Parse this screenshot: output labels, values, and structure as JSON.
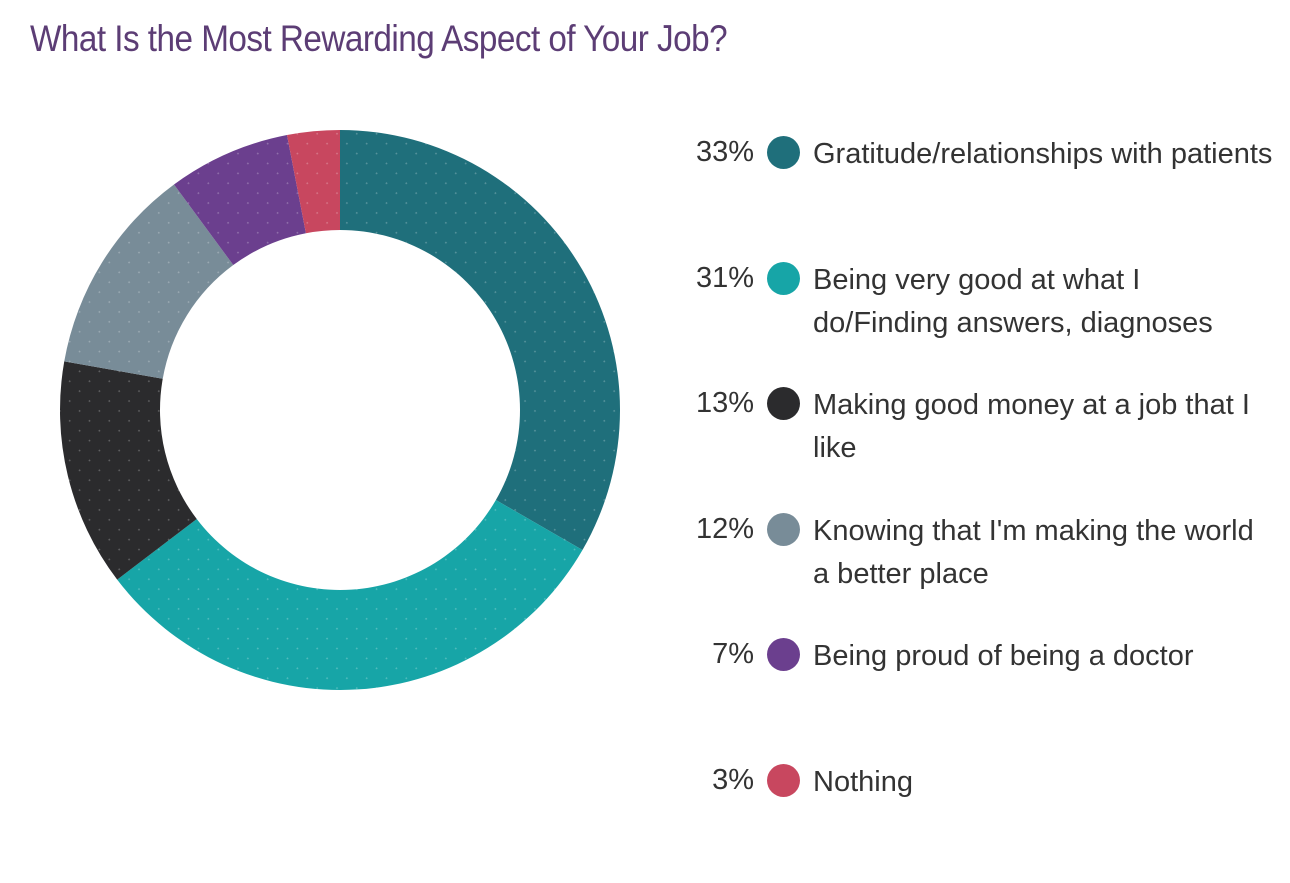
{
  "chart_data": {
    "type": "pie",
    "title": "What Is the Most Rewarding Aspect of Your Job?",
    "donut": true,
    "legend_position": "right",
    "slices": [
      {
        "label": "Gratitude/relationships with patients",
        "value": 33,
        "display": "33%",
        "color": "#1f6f7b"
      },
      {
        "label": "Being very good at what I do/Finding answers, diagnoses",
        "value": 31,
        "display": "31%",
        "color": "#17a5a7"
      },
      {
        "label": "Making good money at a job that I like",
        "value": 13,
        "display": "13%",
        "color": "#2b2b2d"
      },
      {
        "label": "Knowing that I'm making the world a better place",
        "value": 12,
        "display": "12%",
        "color": "#788c98"
      },
      {
        "label": "Being proud of being a doctor",
        "value": 7,
        "display": "7%",
        "color": "#6b3f8e"
      },
      {
        "label": "Nothing",
        "value": 3,
        "display": "3%",
        "color": "#c8475f"
      }
    ]
  }
}
